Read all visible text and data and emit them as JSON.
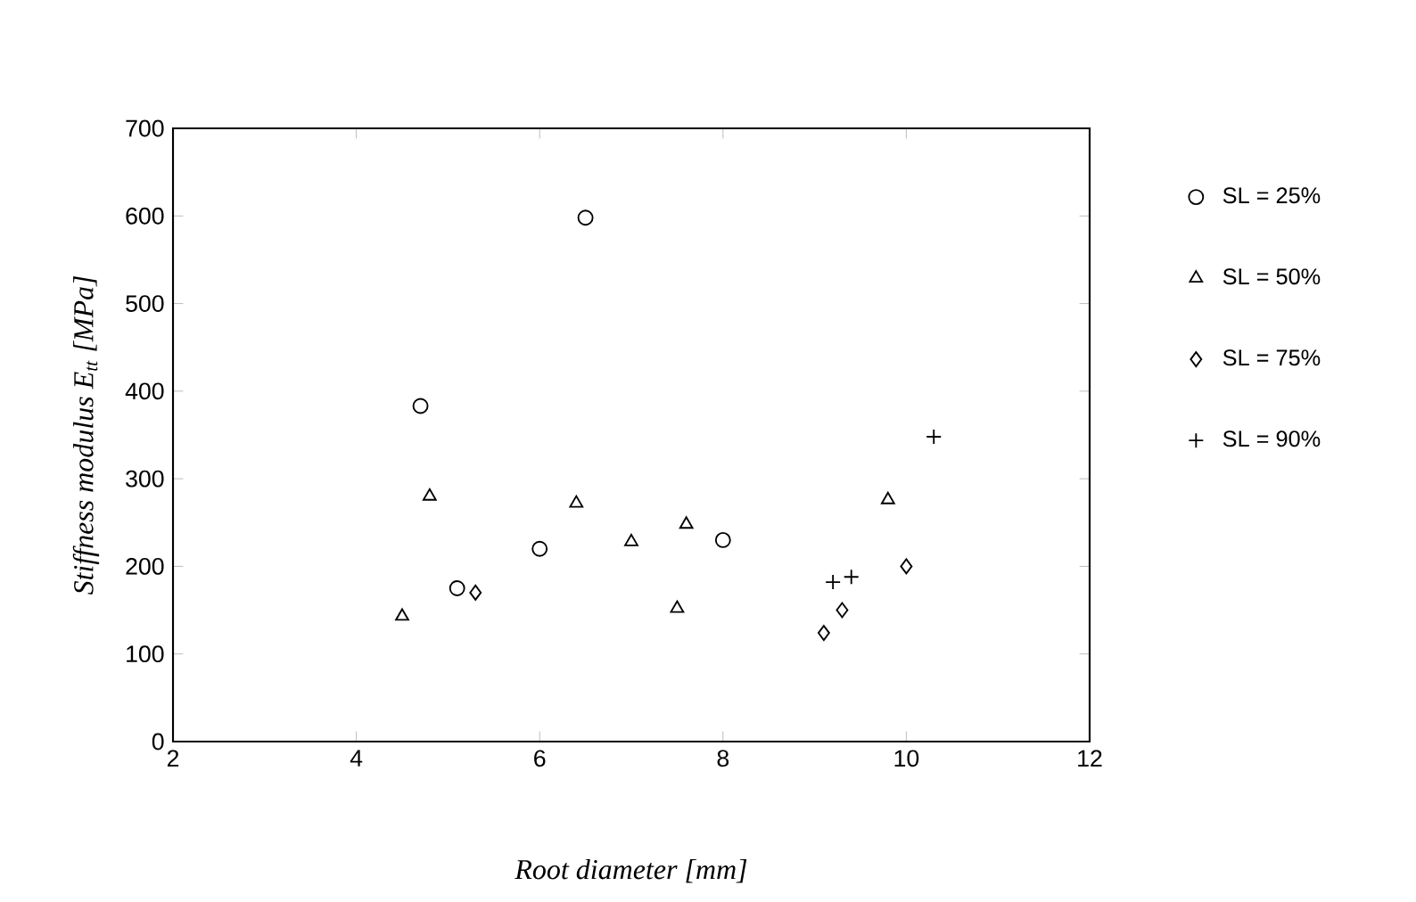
{
  "chart_data": {
    "type": "scatter",
    "xlabel": "Root diameter [mm]",
    "ylabel": "Stiffness modulus E$_{tt}$ [MPa]",
    "xlim": [
      2,
      12
    ],
    "ylim": [
      0,
      700
    ],
    "xticks": [
      2,
      4,
      6,
      8,
      10,
      12
    ],
    "yticks": [
      0,
      100,
      200,
      300,
      400,
      500,
      600,
      700
    ],
    "legend": "right",
    "grid": false,
    "series": [
      {
        "name": "SL = 25%",
        "color": "#000000",
        "marker": "circle",
        "x": [
          4.7,
          5.1,
          6.0,
          6.5,
          8.0
        ],
        "values": [
          383,
          175,
          220,
          598,
          230
        ]
      },
      {
        "name": "SL = 50%",
        "color": "#000000",
        "marker": "triangle",
        "x": [
          4.5,
          4.8,
          6.4,
          7.0,
          7.5,
          7.6,
          9.8
        ],
        "values": [
          143,
          280,
          272,
          228,
          152,
          248,
          276
        ]
      },
      {
        "name": "SL = 75%",
        "color": "#000000",
        "marker": "diamond",
        "x": [
          5.3,
          9.1,
          9.3,
          10.0
        ],
        "values": [
          170,
          124,
          150,
          200
        ]
      },
      {
        "name": "SL = 90%",
        "color": "#000000",
        "marker": "cross",
        "x": [
          9.2,
          9.4,
          10.3
        ],
        "values": [
          182,
          188,
          348
        ]
      }
    ]
  }
}
